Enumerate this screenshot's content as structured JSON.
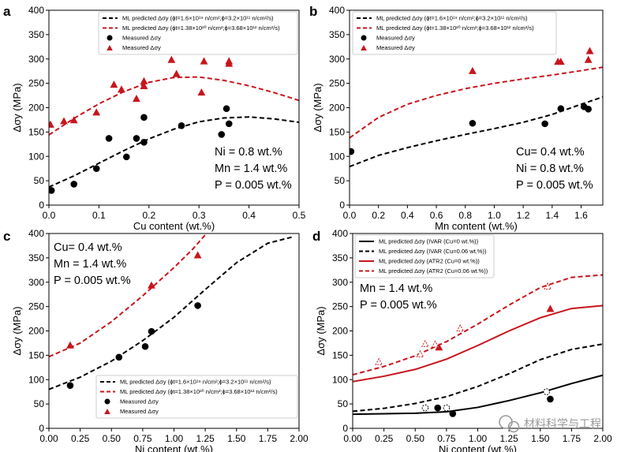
{
  "colors": {
    "black": "#000000",
    "red": "#c8151d",
    "legend_border": "#cccccc"
  },
  "watermark": {
    "text": "材料科学与工程",
    "icon": "wechat-logo-icon"
  },
  "chart_data": [
    {
      "panel": "a",
      "type": "scatter",
      "xlabel": "Cu content (wt.%)",
      "ylabel": "Δσy (MPa)",
      "xlim": [
        0,
        0.5
      ],
      "ylim": [
        0,
        400
      ],
      "xticks": [
        0,
        0.1,
        0.2,
        0.3,
        0.4,
        0.5
      ],
      "yticks": [
        0,
        50,
        100,
        150,
        200,
        250,
        300,
        350,
        400
      ],
      "xtick_labels": [
        "0.0",
        "0.1",
        "0.2",
        "0.3",
        "0.4",
        "0.5"
      ],
      "legend": {
        "loc": "upper-left"
      },
      "annotations": [
        "Ni = 0.8 wt.%",
        "Mn = 1.4 wt.%",
        "P = 0.005 wt.%"
      ],
      "series": [
        {
          "name": "ML predicted Δσy (ϕt=1.6×10¹⁹ n/cm²;ϕ=3.2×10¹¹ n/cm²/s)",
          "kind": "line",
          "style": "dashed",
          "color": "#000000",
          "x": [
            0,
            0.05,
            0.1,
            0.15,
            0.2,
            0.25,
            0.3,
            0.35,
            0.4,
            0.45,
            0.5
          ],
          "y": [
            37,
            60,
            86,
            112,
            136,
            156,
            171,
            179,
            181,
            177,
            170
          ]
        },
        {
          "name": "ML predicted Δσy (ϕt=1.38×10²⁰ n/cm²;ϕ=3.68×10¹² n/cm²/s)",
          "kind": "line",
          "style": "dashed",
          "color": "#c8151d",
          "x": [
            0,
            0.05,
            0.1,
            0.15,
            0.2,
            0.25,
            0.3,
            0.35,
            0.4,
            0.45,
            0.5
          ],
          "y": [
            144,
            178,
            208,
            233,
            252,
            262,
            263,
            256,
            245,
            231,
            215
          ]
        },
        {
          "name": "Measured Δσy",
          "kind": "circle",
          "color": "#000000",
          "x": [
            0.005,
            0.05,
            0.095,
            0.12,
            0.155,
            0.175,
            0.19,
            0.19,
            0.265,
            0.345,
            0.355,
            0.36
          ],
          "y": [
            30,
            43,
            75,
            137,
            99,
            137,
            180,
            129,
            163,
            145,
            198,
            167
          ]
        },
        {
          "name": "Measured Δσy",
          "kind": "triangle",
          "color": "#c8151d",
          "x": [
            0.003,
            0.03,
            0.05,
            0.095,
            0.13,
            0.145,
            0.175,
            0.19,
            0.19,
            0.245,
            0.255,
            0.305,
            0.31,
            0.36,
            0.36
          ],
          "y": [
            165,
            172,
            174,
            190,
            247,
            237,
            218,
            244,
            254,
            298,
            269,
            231,
            295,
            295,
            290
          ]
        }
      ]
    },
    {
      "panel": "b",
      "type": "scatter",
      "xlabel": "Mn content (wt.%)",
      "ylabel": "Δσy (MPa)",
      "xlim": [
        0,
        1.75
      ],
      "ylim": [
        0,
        400
      ],
      "xticks": [
        0,
        0.2,
        0.4,
        0.6,
        0.8,
        1.0,
        1.2,
        1.4,
        1.6
      ],
      "yticks": [
        0,
        50,
        100,
        150,
        200,
        250,
        300,
        350,
        400
      ],
      "xtick_labels": [
        "0.0",
        "0.2",
        "0.4",
        "0.6",
        "0.8",
        "1.0",
        "1.2",
        "1.4",
        "1.6"
      ],
      "legend": {
        "loc": "upper-left"
      },
      "annotations": [
        "Cu= 0.4 wt.%",
        "Ni = 0.8 wt.%",
        "P = 0.005 wt.%"
      ],
      "series": [
        {
          "name": "ML predicted Δσy (ϕt=1.6×10¹⁹ n/cm²;ϕ=3.2×10¹¹ n/cm²/s)",
          "kind": "line",
          "style": "dashed",
          "color": "#000000",
          "x": [
            0,
            0.2,
            0.4,
            0.6,
            0.8,
            1.0,
            1.2,
            1.4,
            1.6,
            1.75
          ],
          "y": [
            79,
            102,
            118,
            132,
            145,
            157,
            170,
            186,
            207,
            222
          ]
        },
        {
          "name": "ML predicted Δσy (ϕt=1.38×10²⁰ n/cm²;ϕ=3.68×10¹² n/cm²/s)",
          "kind": "line",
          "style": "dashed",
          "color": "#c8151d",
          "x": [
            0,
            0.2,
            0.4,
            0.6,
            0.8,
            1.0,
            1.2,
            1.4,
            1.6,
            1.75
          ],
          "y": [
            138,
            180,
            207,
            225,
            239,
            250,
            259,
            267,
            276,
            283
          ]
        },
        {
          "name": "Measured Δσy",
          "kind": "circle",
          "color": "#000000",
          "x": [
            0.01,
            0.85,
            1.35,
            1.46,
            1.62,
            1.65
          ],
          "y": [
            110,
            168,
            167,
            198,
            202,
            197
          ]
        },
        {
          "name": "Measured Δσy",
          "kind": "triangle",
          "color": "#c8151d",
          "x": [
            0.85,
            1.44,
            1.46,
            1.65,
            1.66
          ],
          "y": [
            275,
            294,
            294,
            298,
            316
          ]
        }
      ]
    },
    {
      "panel": "c",
      "type": "scatter",
      "xlabel": "Ni content (wt.%)",
      "ylabel": "Δσy (MPa)",
      "xlim": [
        0,
        2.0
      ],
      "ylim": [
        0,
        400
      ],
      "xticks": [
        0,
        0.25,
        0.5,
        0.75,
        1.0,
        1.25,
        1.5,
        1.75,
        2.0
      ],
      "yticks": [
        0,
        50,
        100,
        150,
        200,
        250,
        300,
        350,
        400
      ],
      "xtick_labels": [
        "0.00",
        "0.25",
        "0.50",
        "0.75",
        "1.00",
        "1.25",
        "1.50",
        "1.75",
        "2.00"
      ],
      "legend": {
        "loc": "lower-right"
      },
      "annotations": [
        "Cu= 0.4 wt.%",
        "Mn = 1.4 wt.%",
        "P = 0.005 wt.%"
      ],
      "series": [
        {
          "name": "ML predicted Δσy (ϕt=1.6×10¹⁹ n/cm²;ϕ=3.2×10¹¹ n/cm²/s)",
          "kind": "line",
          "style": "dashed",
          "color": "#000000",
          "x": [
            0,
            0.25,
            0.5,
            0.75,
            1.0,
            1.25,
            1.5,
            1.75,
            1.95
          ],
          "y": [
            80,
            105,
            138,
            180,
            228,
            285,
            340,
            380,
            393
          ]
        },
        {
          "name": "ML predicted Δσy (ϕt=1.38×10²⁰ n/cm²;ϕ=3.68×10¹² n/cm²/s)",
          "kind": "line",
          "style": "dashed",
          "color": "#c8151d",
          "x": [
            0,
            0.25,
            0.5,
            0.75,
            1.0,
            1.15,
            1.26
          ],
          "y": [
            147,
            175,
            219,
            272,
            330,
            368,
            400
          ]
        },
        {
          "name": "Measured Δσy",
          "kind": "circle",
          "color": "#000000",
          "x": [
            0.17,
            0.56,
            0.77,
            0.82,
            1.19
          ],
          "y": [
            88,
            146,
            168,
            199,
            252
          ]
        },
        {
          "name": "Measured Δσy",
          "kind": "triangle",
          "color": "#c8151d",
          "x": [
            0.17,
            0.82,
            1.19
          ],
          "y": [
            170,
            293,
            355
          ]
        }
      ]
    },
    {
      "panel": "d",
      "type": "scatter",
      "xlabel": "Ni content (wt.%)",
      "ylabel": "Δσy (MPa)",
      "xlim": [
        0,
        2.0
      ],
      "ylim": [
        0,
        400
      ],
      "xticks": [
        0,
        0.25,
        0.5,
        0.75,
        1.0,
        1.25,
        1.5,
        1.75,
        2.0
      ],
      "yticks": [
        0,
        50,
        100,
        150,
        200,
        250,
        300,
        350,
        400
      ],
      "xtick_labels": [
        "0.00",
        "0.25",
        "0.50",
        "0.75",
        "1.00",
        "1.25",
        "1.50",
        "1.75",
        "2.00"
      ],
      "legend": {
        "loc": "upper-left"
      },
      "annotations": [
        "Mn = 1.4 wt.%",
        "P = 0.005 wt.%"
      ],
      "series": [
        {
          "name": "ML predicted Δσy (IVAR (Cu=0 wt.%))",
          "kind": "line",
          "style": "solid",
          "color": "#000000",
          "x": [
            0,
            0.25,
            0.5,
            0.75,
            1.0,
            1.25,
            1.5,
            1.75,
            2.0
          ],
          "y": [
            29,
            30,
            31,
            34,
            43,
            57,
            73,
            92,
            109
          ]
        },
        {
          "name": "ML predicted Δσy (IVAR (Cu=0.06 wt.%))",
          "kind": "line",
          "style": "dashed",
          "color": "#000000",
          "x": [
            0,
            0.25,
            0.5,
            0.75,
            1.0,
            1.25,
            1.5,
            1.75,
            2.0
          ],
          "y": [
            35,
            41,
            51,
            65,
            86,
            112,
            141,
            162,
            173
          ]
        },
        {
          "name": "ML predicted Δσy (ATR2 (Cu=0 wt.%))",
          "kind": "line",
          "style": "solid",
          "color": "#c8151d",
          "x": [
            0,
            0.25,
            0.5,
            0.75,
            1.0,
            1.25,
            1.5,
            1.75,
            2.0
          ],
          "y": [
            96,
            107,
            121,
            142,
            170,
            200,
            227,
            246,
            252
          ]
        },
        {
          "name": "ML predicted Δσy (ATR2 (Cu=0.06 wt.%))",
          "kind": "line",
          "style": "dashed",
          "color": "#c8151d",
          "x": [
            0,
            0.25,
            0.5,
            0.75,
            1.0,
            1.25,
            1.5,
            1.75,
            2.0
          ],
          "y": [
            110,
            127,
            149,
            178,
            214,
            253,
            289,
            310,
            315
          ]
        },
        {
          "kind": "circle",
          "color": "#000000",
          "filled": true,
          "x": [
            0.68,
            0.8,
            1.58
          ],
          "y": [
            42,
            30,
            60
          ]
        },
        {
          "kind": "circle",
          "color": "#000000",
          "filled": false,
          "x": [
            0.58,
            0.75,
            1.55
          ],
          "y": [
            42,
            42,
            75
          ]
        },
        {
          "kind": "triangle",
          "color": "#c8151d",
          "filled": true,
          "x": [
            0.69,
            1.58
          ],
          "y": [
            166,
            245
          ]
        },
        {
          "kind": "triangle",
          "color": "#c8151d",
          "filled": false,
          "x": [
            0.21,
            0.54,
            0.58,
            0.66,
            0.86,
            1.56
          ],
          "y": [
            136,
            152,
            173,
            172,
            205,
            291
          ]
        }
      ]
    }
  ]
}
